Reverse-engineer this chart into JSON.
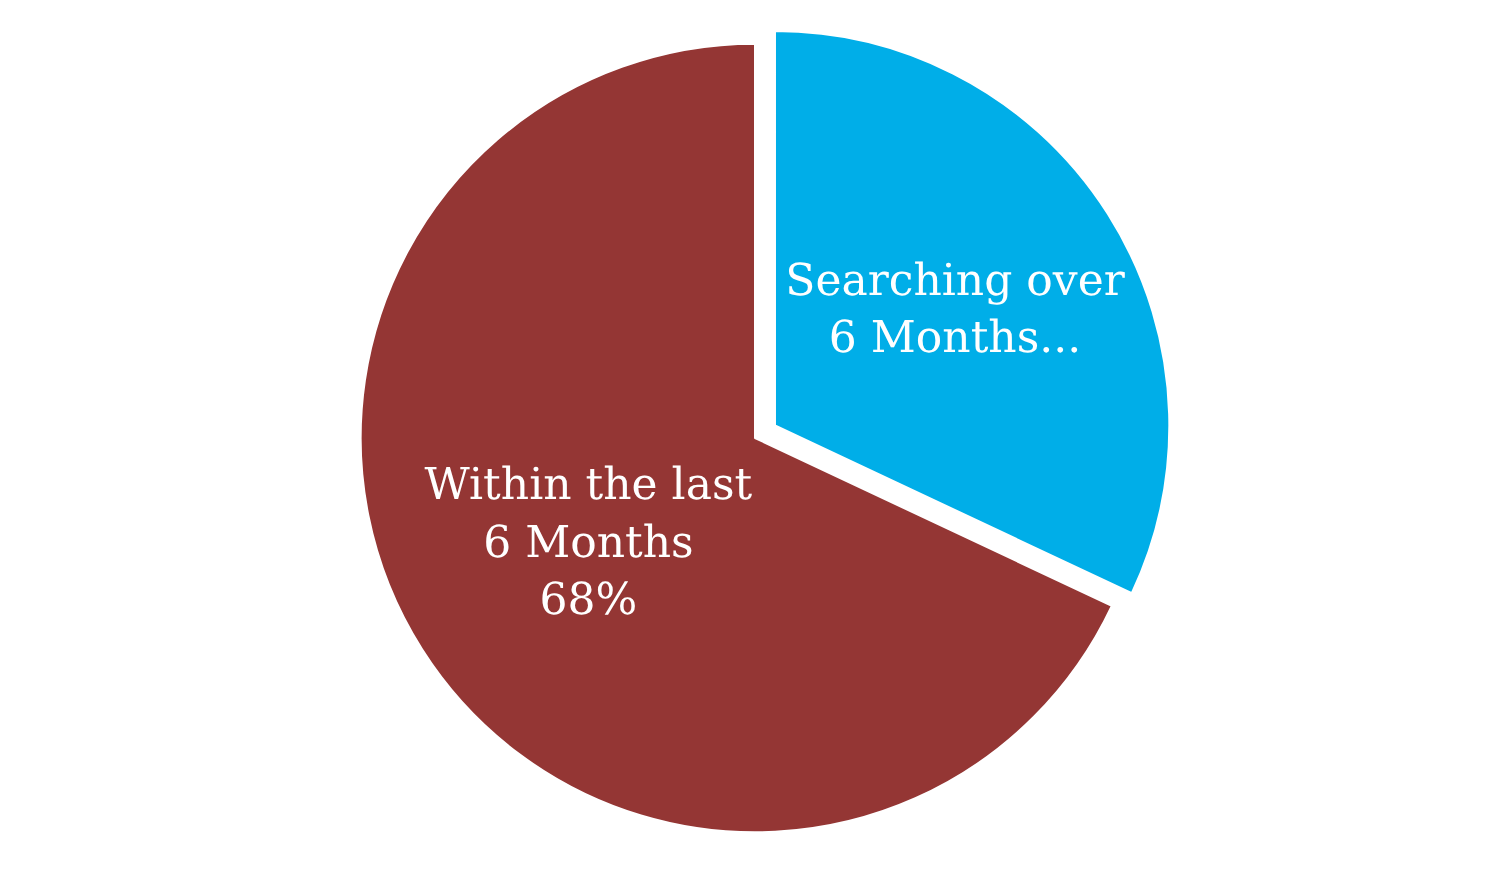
{
  "chart_data": {
    "type": "pie",
    "categories": [
      "Searching over 6 Months...",
      "Within the last 6 Months"
    ],
    "values": [
      32,
      68
    ],
    "colors": [
      "#00aee8",
      "#943634"
    ],
    "value_labels": [
      null,
      "68%"
    ],
    "legend": false
  }
}
